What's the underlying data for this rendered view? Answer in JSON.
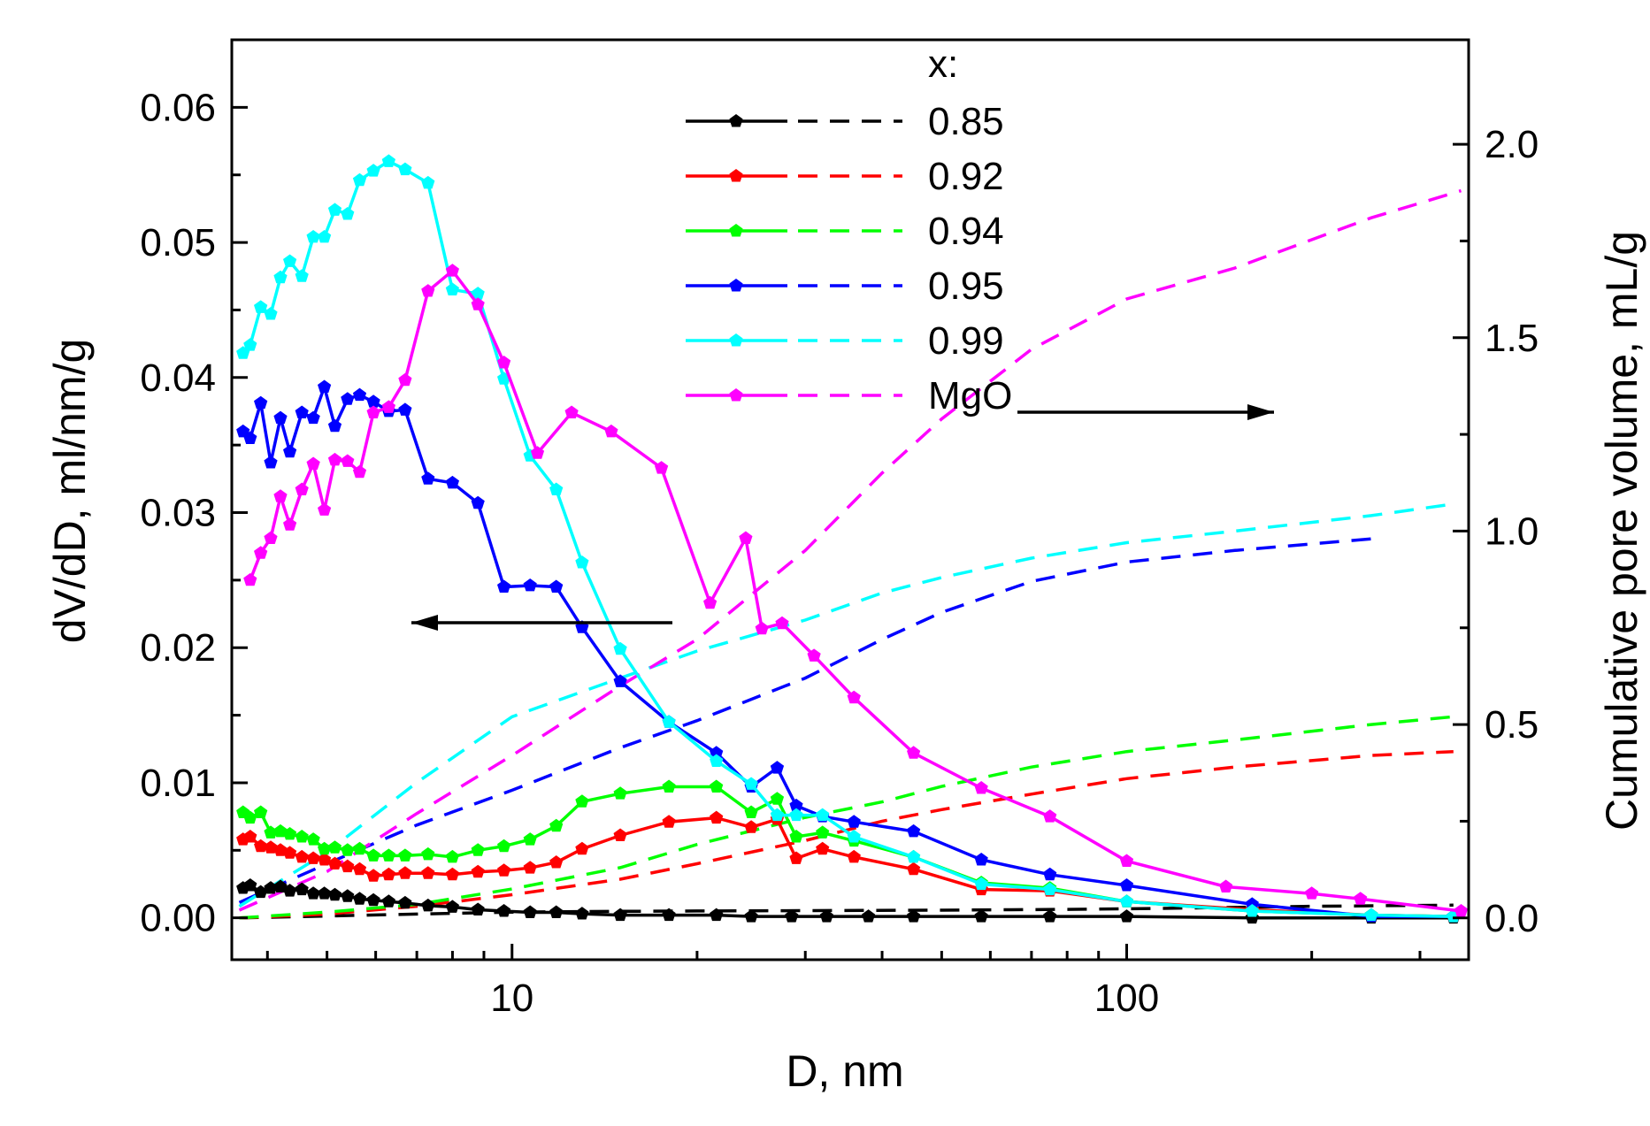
{
  "chart_data": {
    "type": "line",
    "title": "",
    "xlabel": "D, nm",
    "ylabel_left": "dV/dD, ml/nm/g",
    "ylabel_right": "Cumulative pore volume, mL/g",
    "xscale": "log",
    "xlim": [
      3.5,
      360
    ],
    "ylim_left": [
      -0.0031,
      0.065
    ],
    "ylim_right": [
      -0.108,
      2.27
    ],
    "x_ticks": [
      10,
      100
    ],
    "x_tick_labels": [
      "10",
      "100"
    ],
    "y_left_ticks": [
      0.0,
      0.01,
      0.02,
      0.03,
      0.04,
      0.05,
      0.06
    ],
    "y_left_tick_labels": [
      "0.00",
      "0.01",
      "0.02",
      "0.03",
      "0.04",
      "0.05",
      "0.06"
    ],
    "y_right_ticks": [
      0.0,
      0.5,
      1.0,
      1.5,
      2.0
    ],
    "y_right_tick_labels": [
      "0.0",
      "0.5",
      "1.0",
      "1.5",
      "2.0"
    ],
    "legend_title": "x:",
    "legend_position": "top-center",
    "series": [
      {
        "name": "0.85",
        "color": "#000000",
        "dvdd": {
          "x": [
            3.65,
            3.75,
            3.9,
            4.05,
            4.2,
            4.35,
            4.55,
            4.75,
            4.95,
            5.15,
            5.4,
            5.65,
            5.95,
            6.3,
            6.7,
            7.3,
            8.0,
            8.8,
            9.7,
            10.7,
            11.8,
            13.0,
            15.0,
            18.0,
            21.5,
            24.5,
            28.5,
            32.5,
            38.0,
            45.0,
            58.0,
            75.0,
            100.0,
            160.0,
            250.0,
            340.0
          ],
          "y": [
            0.0022,
            0.0024,
            0.0019,
            0.0022,
            0.0023,
            0.002,
            0.0021,
            0.0018,
            0.0018,
            0.0017,
            0.0016,
            0.0014,
            0.0013,
            0.0012,
            0.0011,
            0.0009,
            0.0008,
            0.0006,
            0.0005,
            0.0004,
            0.0004,
            0.0003,
            0.0002,
            0.0002,
            0.0002,
            0.0001,
            0.0001,
            0.0001,
            0.0001,
            0.0001,
            0.0001,
            0.0001,
            0.0001,
            0.0,
            0.0,
            0.0
          ]
        },
        "cumulative": {
          "x": [
            3.6,
            5.0,
            7.0,
            10.0,
            15.0,
            20.0,
            30.0,
            50.0,
            80.0,
            120.0,
            200.0,
            340.0
          ],
          "y": [
            0.0,
            0.005,
            0.01,
            0.015,
            0.017,
            0.018,
            0.019,
            0.02,
            0.022,
            0.025,
            0.03,
            0.033
          ]
        }
      },
      {
        "name": "0.92",
        "color": "#ff0000",
        "dvdd": {
          "x": [
            3.65,
            3.75,
            3.9,
            4.05,
            4.2,
            4.35,
            4.55,
            4.75,
            4.95,
            5.15,
            5.4,
            5.65,
            5.95,
            6.3,
            6.7,
            7.3,
            8.0,
            8.8,
            9.7,
            10.7,
            11.8,
            13.0,
            15.0,
            18.0,
            21.5,
            24.5,
            27.0,
            29.0,
            32.0,
            36.0,
            45.0,
            58.0,
            75.0,
            100.0,
            160.0,
            250.0,
            340.0
          ],
          "y": [
            0.0058,
            0.006,
            0.0053,
            0.0052,
            0.005,
            0.0048,
            0.0045,
            0.0044,
            0.0043,
            0.004,
            0.0038,
            0.0036,
            0.0031,
            0.0032,
            0.0033,
            0.0033,
            0.0032,
            0.0034,
            0.0035,
            0.0037,
            0.0041,
            0.0051,
            0.0061,
            0.0071,
            0.0074,
            0.0067,
            0.0073,
            0.0044,
            0.0051,
            0.0045,
            0.0036,
            0.0021,
            0.002,
            0.0012,
            0.0006,
            0.0002,
            0.0001
          ]
        },
        "cumulative": {
          "x": [
            3.6,
            5.0,
            7.0,
            10.0,
            15.0,
            20.0,
            30.0,
            40.0,
            50.0,
            70.0,
            100.0,
            150.0,
            250.0,
            340.0
          ],
          "y": [
            0.0,
            0.01,
            0.03,
            0.06,
            0.1,
            0.14,
            0.2,
            0.25,
            0.28,
            0.32,
            0.36,
            0.39,
            0.42,
            0.43
          ]
        }
      },
      {
        "name": "0.94",
        "color": "#00ff00",
        "dvdd": {
          "x": [
            3.65,
            3.75,
            3.9,
            4.05,
            4.2,
            4.35,
            4.55,
            4.75,
            4.95,
            5.15,
            5.4,
            5.65,
            5.95,
            6.3,
            6.7,
            7.3,
            8.0,
            8.8,
            9.7,
            10.7,
            11.8,
            13.0,
            15.0,
            18.0,
            21.5,
            24.5,
            27.0,
            29.0,
            32.0,
            36.0,
            45.0,
            58.0,
            75.0,
            100.0,
            160.0,
            250.0,
            340.0
          ],
          "y": [
            0.0078,
            0.0074,
            0.0078,
            0.0063,
            0.0064,
            0.0062,
            0.006,
            0.0058,
            0.0051,
            0.0052,
            0.005,
            0.0051,
            0.0046,
            0.0046,
            0.0046,
            0.0047,
            0.0045,
            0.005,
            0.0053,
            0.0058,
            0.0068,
            0.0086,
            0.0092,
            0.0097,
            0.0097,
            0.0078,
            0.0088,
            0.006,
            0.0063,
            0.0057,
            0.0045,
            0.0026,
            0.0022,
            0.0012,
            0.0005,
            0.0002,
            0.0001
          ]
        },
        "cumulative": {
          "x": [
            3.6,
            5.0,
            7.0,
            10.0,
            15.0,
            20.0,
            30.0,
            40.0,
            50.0,
            70.0,
            100.0,
            150.0,
            250.0,
            340.0
          ],
          "y": [
            0.0,
            0.015,
            0.035,
            0.075,
            0.13,
            0.19,
            0.26,
            0.3,
            0.34,
            0.39,
            0.43,
            0.46,
            0.5,
            0.52
          ]
        }
      },
      {
        "name": "0.95",
        "color": "#0000ff",
        "dvdd": {
          "x": [
            3.65,
            3.75,
            3.9,
            4.05,
            4.2,
            4.35,
            4.55,
            4.75,
            4.95,
            5.15,
            5.4,
            5.65,
            5.95,
            6.3,
            6.7,
            7.3,
            8.0,
            8.8,
            9.7,
            10.7,
            11.8,
            13.0,
            15.0,
            18.0,
            21.5,
            24.5,
            27.0,
            29.0,
            32.0,
            36.0,
            45.0,
            58.0,
            75.0,
            100.0,
            160.0,
            250.0,
            340.0
          ],
          "y": [
            0.036,
            0.0355,
            0.0381,
            0.0337,
            0.037,
            0.0345,
            0.0374,
            0.037,
            0.0393,
            0.0364,
            0.0384,
            0.0387,
            0.0382,
            0.0375,
            0.0376,
            0.0325,
            0.0322,
            0.0307,
            0.0245,
            0.0246,
            0.0245,
            0.0215,
            0.0175,
            0.0145,
            0.0122,
            0.0097,
            0.0111,
            0.0083,
            0.0075,
            0.0071,
            0.0064,
            0.0043,
            0.0032,
            0.0024,
            0.001,
            0.0001,
            0.0001
          ]
        },
        "cumulative": {
          "x": [
            3.6,
            5.0,
            7.0,
            10.0,
            15.0,
            20.0,
            30.0,
            40.0,
            50.0,
            70.0,
            100.0,
            150.0,
            250.0
          ],
          "y": [
            0.04,
            0.14,
            0.24,
            0.33,
            0.44,
            0.51,
            0.62,
            0.72,
            0.79,
            0.87,
            0.92,
            0.95,
            0.98
          ]
        }
      },
      {
        "name": "0.99",
        "color": "#00ffff",
        "dvdd": {
          "x": [
            3.65,
            3.75,
            3.9,
            4.05,
            4.2,
            4.35,
            4.55,
            4.75,
            4.95,
            5.15,
            5.4,
            5.65,
            5.95,
            6.3,
            6.7,
            7.3,
            8.0,
            8.8,
            9.7,
            10.7,
            11.8,
            13.0,
            15.0,
            18.0,
            21.5,
            24.5,
            27.0,
            29.0,
            32.0,
            36.0,
            45.0,
            58.0,
            75.0,
            100.0,
            160.0,
            250.0,
            340.0
          ],
          "y": [
            0.0418,
            0.0424,
            0.0452,
            0.0447,
            0.0474,
            0.0486,
            0.0475,
            0.0504,
            0.0504,
            0.0524,
            0.0521,
            0.0546,
            0.0553,
            0.056,
            0.0554,
            0.0544,
            0.0465,
            0.0462,
            0.0399,
            0.0342,
            0.0317,
            0.0263,
            0.0199,
            0.0145,
            0.0116,
            0.0099,
            0.0076,
            0.0076,
            0.0076,
            0.006,
            0.0045,
            0.0025,
            0.0021,
            0.0012,
            0.0005,
            0.0002,
            0.0001
          ]
        },
        "cumulative": {
          "x": [
            3.6,
            5.0,
            7.0,
            10.0,
            15.0,
            20.0,
            30.0,
            40.0,
            50.0,
            70.0,
            100.0,
            150.0,
            250.0,
            340.0
          ],
          "y": [
            0.03,
            0.17,
            0.35,
            0.52,
            0.62,
            0.69,
            0.77,
            0.84,
            0.88,
            0.93,
            0.97,
            1.0,
            1.04,
            1.07
          ]
        }
      },
      {
        "name": "MgO",
        "color": "#ff00ff",
        "dvdd": {
          "x": [
            3.75,
            3.9,
            4.05,
            4.2,
            4.35,
            4.55,
            4.75,
            4.95,
            5.15,
            5.4,
            5.65,
            5.95,
            6.3,
            6.7,
            7.3,
            8.0,
            8.8,
            9.7,
            11.0,
            12.5,
            14.5,
            17.5,
            21.0,
            24.0,
            25.5,
            27.5,
            31.0,
            36.0,
            45.0,
            58.0,
            75.0,
            100.0,
            145.0,
            200.0,
            240.0,
            350.0
          ],
          "y": [
            0.025,
            0.027,
            0.0281,
            0.0312,
            0.0291,
            0.0317,
            0.0336,
            0.0302,
            0.0339,
            0.0338,
            0.033,
            0.0374,
            0.0378,
            0.0398,
            0.0464,
            0.0479,
            0.0454,
            0.0411,
            0.0344,
            0.0374,
            0.036,
            0.0333,
            0.0233,
            0.0281,
            0.0214,
            0.0218,
            0.0194,
            0.0163,
            0.0122,
            0.0096,
            0.0075,
            0.0042,
            0.0023,
            0.0018,
            0.0014,
            0.0005
          ]
        },
        "cumulative": {
          "x": [
            3.6,
            5.0,
            7.0,
            10.0,
            15.0,
            20.0,
            30.0,
            40.0,
            50.0,
            70.0,
            100.0,
            150.0,
            250.0,
            350.0
          ],
          "y": [
            0.02,
            0.12,
            0.27,
            0.42,
            0.6,
            0.72,
            0.95,
            1.15,
            1.29,
            1.47,
            1.6,
            1.68,
            1.81,
            1.88
          ]
        }
      }
    ],
    "annotations": [
      {
        "type": "arrow",
        "direction": "left",
        "refers_to": "left axis"
      },
      {
        "type": "arrow",
        "direction": "right",
        "refers_to": "right axis"
      }
    ]
  }
}
